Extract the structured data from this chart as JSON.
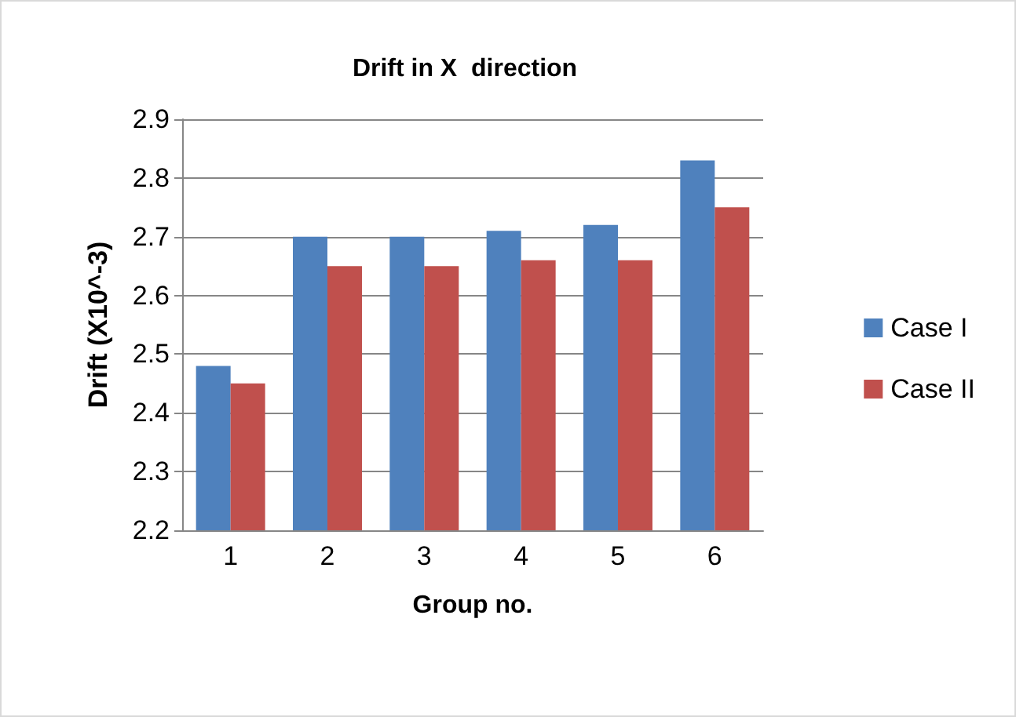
{
  "chart_data": {
    "type": "bar",
    "title": "Drift in X  direction",
    "xlabel": "Group no.",
    "ylabel": "Drift (X10^-3)",
    "categories": [
      "1",
      "2",
      "3",
      "4",
      "5",
      "6"
    ],
    "series": [
      {
        "name": "Case I",
        "color": "#4f81bd",
        "values": [
          2.48,
          2.7,
          2.7,
          2.71,
          2.72,
          2.83
        ]
      },
      {
        "name": "Case II",
        "color": "#c0504d",
        "values": [
          2.45,
          2.65,
          2.65,
          2.66,
          2.66,
          2.75
        ]
      }
    ],
    "ylim": [
      2.2,
      2.9
    ],
    "yticks": [
      2.2,
      2.3,
      2.4,
      2.5,
      2.6,
      2.7,
      2.8,
      2.9
    ],
    "grid": "y",
    "legend": "right"
  }
}
